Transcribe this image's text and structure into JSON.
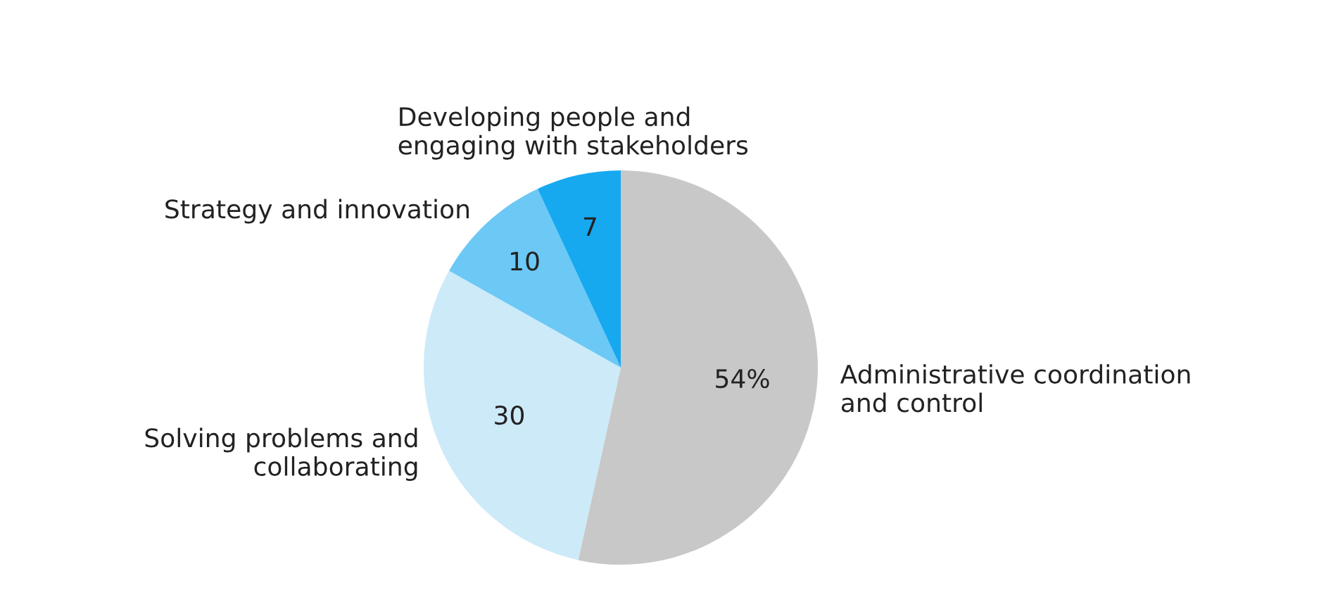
{
  "chart_data": {
    "type": "pie",
    "categories": [
      "Administrative coordination\nand control",
      "Solving problems and\ncollaborating",
      "Strategy and innovation",
      "Developing people and\nengaging with stakeholders"
    ],
    "values": [
      54,
      30,
      10,
      7
    ],
    "value_labels": [
      "54%",
      "30",
      "10",
      "7"
    ],
    "colors": [
      "#c8c8c8",
      "#cdeaf8",
      "#6cc8f5",
      "#16a9f0"
    ]
  }
}
